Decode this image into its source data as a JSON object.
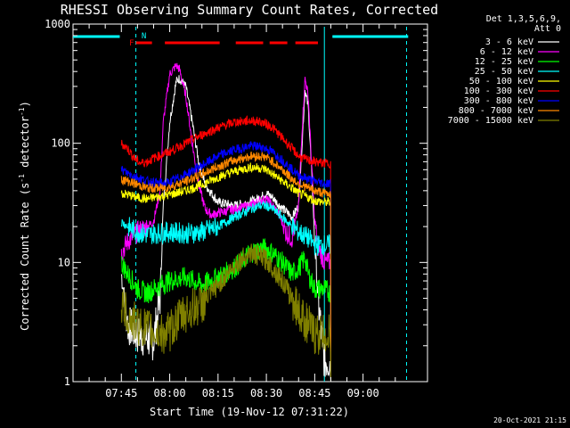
{
  "chart_data": {
    "type": "line",
    "title": "RHESSI Observing Summary Count Rates, Corrected",
    "xlabel": "Start Time (19-Nov-12 07:31:22)",
    "ylabel_prefix": "Corrected Count Rate (s",
    "ylabel_sup1": "-1",
    "ylabel_mid": " detector",
    "ylabel_sup2": "-1",
    "ylabel_suffix": ")",
    "y_scale": "log",
    "ylim": [
      1,
      1000
    ],
    "xlim_minutes": [
      30,
      140
    ],
    "y_ticks": [
      "1",
      "10",
      "100",
      "1000"
    ],
    "x_ticks": [
      "07:45",
      "08:00",
      "08:15",
      "08:30",
      "08:45",
      "09:00"
    ],
    "legend_header": [
      "Det 1,3,5,6,9,",
      "Att 0"
    ],
    "legend_position": "top-right",
    "grid": false,
    "flag_labels": {
      "F": "F",
      "N": "N"
    },
    "footer": "20-Oct-2021 21:15",
    "series": [
      {
        "name": "3 - 6 keV",
        "color": "#ffffff",
        "points": [
          [
            45,
            8
          ],
          [
            47,
            3
          ],
          [
            50,
            2.5
          ],
          [
            55,
            2.2
          ],
          [
            57,
            5
          ],
          [
            58,
            30
          ],
          [
            60,
            150
          ],
          [
            62,
            330
          ],
          [
            63,
            350
          ],
          [
            65,
            300
          ],
          [
            67,
            150
          ],
          [
            69,
            70
          ],
          [
            71,
            45
          ],
          [
            73,
            38
          ],
          [
            75,
            32
          ],
          [
            80,
            30
          ],
          [
            85,
            32
          ],
          [
            88,
            35
          ],
          [
            90,
            38
          ],
          [
            92,
            35
          ],
          [
            94,
            30
          ],
          [
            96,
            27
          ],
          [
            98,
            24
          ],
          [
            100,
            30
          ],
          [
            101,
            90
          ],
          [
            102,
            280
          ],
          [
            103,
            200
          ],
          [
            104,
            60
          ],
          [
            105,
            15
          ],
          [
            106,
            5
          ],
          [
            108,
            1.5
          ],
          [
            110,
            1.5
          ]
        ]
      },
      {
        "name": "6 - 12 keV",
        "color": "#ff00ff",
        "points": [
          [
            45,
            12
          ],
          [
            47,
            15
          ],
          [
            50,
            18
          ],
          [
            53,
            20
          ],
          [
            55,
            22
          ],
          [
            57,
            40
          ],
          [
            58,
            150
          ],
          [
            60,
            380
          ],
          [
            62,
            450
          ],
          [
            63,
            420
          ],
          [
            65,
            250
          ],
          [
            67,
            100
          ],
          [
            69,
            45
          ],
          [
            71,
            28
          ],
          [
            73,
            25
          ],
          [
            75,
            26
          ],
          [
            80,
            28
          ],
          [
            85,
            30
          ],
          [
            88,
            33
          ],
          [
            90,
            34
          ],
          [
            92,
            30
          ],
          [
            94,
            25
          ],
          [
            96,
            18
          ],
          [
            98,
            16
          ],
          [
            100,
            30
          ],
          [
            101,
            120
          ],
          [
            102,
            350
          ],
          [
            103,
            250
          ],
          [
            104,
            70
          ],
          [
            105,
            22
          ],
          [
            106,
            14
          ],
          [
            108,
            10
          ],
          [
            110,
            10
          ]
        ]
      },
      {
        "name": "12 - 25 keV",
        "color": "#00ff00",
        "points": [
          [
            45,
            10
          ],
          [
            47,
            8
          ],
          [
            50,
            6
          ],
          [
            53,
            5.5
          ],
          [
            55,
            6
          ],
          [
            60,
            7
          ],
          [
            65,
            7.5
          ],
          [
            70,
            6.5
          ],
          [
            75,
            7.5
          ],
          [
            80,
            9
          ],
          [
            85,
            12
          ],
          [
            88,
            13
          ],
          [
            90,
            13
          ],
          [
            92,
            12
          ],
          [
            95,
            10
          ],
          [
            98,
            8
          ],
          [
            100,
            9
          ],
          [
            102,
            11
          ],
          [
            103,
            8
          ],
          [
            105,
            6
          ],
          [
            108,
            6
          ],
          [
            110,
            5.5
          ]
        ]
      },
      {
        "name": "25 - 50 keV",
        "color": "#00ffff",
        "points": [
          [
            45,
            22
          ],
          [
            47,
            20
          ],
          [
            50,
            18
          ],
          [
            53,
            17
          ],
          [
            55,
            17.5
          ],
          [
            60,
            18
          ],
          [
            65,
            17.5
          ],
          [
            70,
            18
          ],
          [
            75,
            20
          ],
          [
            80,
            24
          ],
          [
            85,
            28
          ],
          [
            88,
            30
          ],
          [
            90,
            30
          ],
          [
            92,
            28
          ],
          [
            95,
            24
          ],
          [
            98,
            20
          ],
          [
            100,
            18
          ],
          [
            103,
            16
          ],
          [
            105,
            14
          ],
          [
            108,
            14
          ],
          [
            110,
            14
          ]
        ]
      },
      {
        "name": "50 - 100 keV",
        "color": "#ffff00",
        "points": [
          [
            45,
            38
          ],
          [
            47,
            37
          ],
          [
            50,
            35
          ],
          [
            53,
            34
          ],
          [
            55,
            35
          ],
          [
            60,
            37
          ],
          [
            65,
            40
          ],
          [
            70,
            45
          ],
          [
            75,
            52
          ],
          [
            80,
            58
          ],
          [
            85,
            63
          ],
          [
            88,
            62
          ],
          [
            90,
            60
          ],
          [
            92,
            55
          ],
          [
            95,
            48
          ],
          [
            98,
            42
          ],
          [
            100,
            38
          ],
          [
            103,
            35
          ],
          [
            105,
            33
          ],
          [
            108,
            32
          ],
          [
            110,
            32
          ]
        ]
      },
      {
        "name": "100 - 300 keV",
        "color": "#ff0000",
        "points": [
          [
            45,
            100
          ],
          [
            47,
            90
          ],
          [
            49,
            75
          ],
          [
            51,
            68
          ],
          [
            53,
            70
          ],
          [
            55,
            75
          ],
          [
            60,
            85
          ],
          [
            65,
            100
          ],
          [
            70,
            118
          ],
          [
            75,
            135
          ],
          [
            80,
            150
          ],
          [
            85,
            155
          ],
          [
            88,
            152
          ],
          [
            90,
            145
          ],
          [
            92,
            135
          ],
          [
            95,
            110
          ],
          [
            98,
            90
          ],
          [
            100,
            78
          ],
          [
            102,
            73
          ],
          [
            105,
            70
          ],
          [
            108,
            68
          ],
          [
            110,
            68
          ]
        ]
      },
      {
        "name": "300 - 800 keV",
        "color": "#0000ff",
        "points": [
          [
            45,
            60
          ],
          [
            47,
            56
          ],
          [
            50,
            52
          ],
          [
            53,
            48
          ],
          [
            55,
            47
          ],
          [
            58,
            46
          ],
          [
            60,
            47
          ],
          [
            65,
            55
          ],
          [
            70,
            65
          ],
          [
            75,
            78
          ],
          [
            80,
            88
          ],
          [
            85,
            95
          ],
          [
            88,
            94
          ],
          [
            90,
            90
          ],
          [
            92,
            84
          ],
          [
            95,
            72
          ],
          [
            98,
            60
          ],
          [
            100,
            54
          ],
          [
            103,
            50
          ],
          [
            105,
            48
          ],
          [
            108,
            46
          ],
          [
            110,
            46
          ]
        ]
      },
      {
        "name": "800 - 7000 keV",
        "color": "#ff8800",
        "points": [
          [
            45,
            50
          ],
          [
            47,
            48
          ],
          [
            50,
            45
          ],
          [
            53,
            42
          ],
          [
            55,
            42
          ],
          [
            58,
            42
          ],
          [
            60,
            43
          ],
          [
            65,
            48
          ],
          [
            70,
            55
          ],
          [
            75,
            64
          ],
          [
            80,
            72
          ],
          [
            85,
            78
          ],
          [
            88,
            78
          ],
          [
            90,
            76
          ],
          [
            92,
            70
          ],
          [
            95,
            60
          ],
          [
            98,
            50
          ],
          [
            100,
            46
          ],
          [
            103,
            42
          ],
          [
            105,
            40
          ],
          [
            108,
            38
          ],
          [
            110,
            38
          ]
        ]
      },
      {
        "name": "7000 - 15000 keV",
        "color": "#808000",
        "points": [
          [
            45,
            4.5
          ],
          [
            47,
            3.5
          ],
          [
            50,
            3.0
          ],
          [
            53,
            2.8
          ],
          [
            55,
            2.6
          ],
          [
            58,
            2.5
          ],
          [
            60,
            2.6
          ],
          [
            62,
            3.2
          ],
          [
            65,
            3.8
          ],
          [
            70,
            4.5
          ],
          [
            73,
            5.5
          ],
          [
            75,
            6.5
          ],
          [
            78,
            8
          ],
          [
            80,
            9.5
          ],
          [
            83,
            11
          ],
          [
            85,
            12
          ],
          [
            87,
            11.5
          ],
          [
            90,
            10.5
          ],
          [
            92,
            9
          ],
          [
            95,
            7
          ],
          [
            97,
            5.5
          ],
          [
            99,
            4.5
          ],
          [
            101,
            3.5
          ],
          [
            103,
            3
          ],
          [
            105,
            2.5
          ],
          [
            108,
            2.5
          ],
          [
            110,
            2.5
          ]
        ]
      }
    ],
    "attenuator_bar_color": "#00ffff",
    "flag_bar_color": "#ff0000"
  }
}
